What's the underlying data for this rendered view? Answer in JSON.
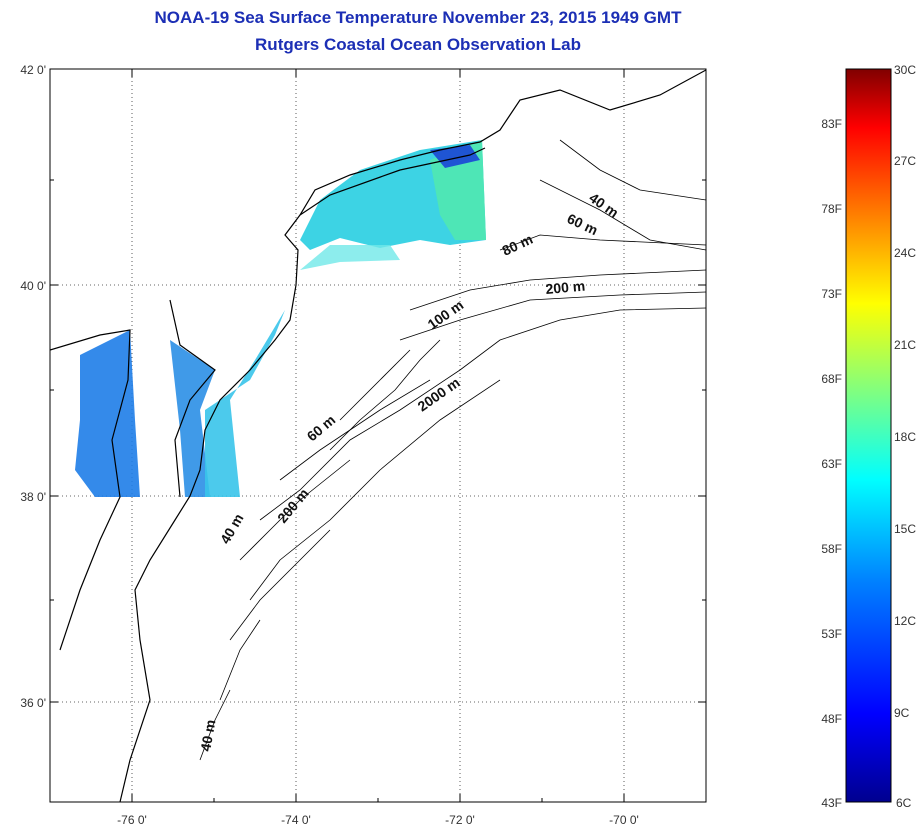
{
  "title": {
    "line1": "NOAA-19 Sea Surface Temperature November 23, 2015 1949 GMT",
    "line2": "Rutgers Coastal Ocean Observation Lab"
  },
  "map": {
    "lat_ticks": [
      "42 0'",
      "40 0'",
      "38 0'",
      "36 0'"
    ],
    "lon_ticks": [
      "-76 0'",
      "-74 0'",
      "-72 0'",
      "-70 0'"
    ],
    "depth_labels": [
      "40 m",
      "60 m",
      "80 m",
      "200 m",
      "100 m",
      "2000 m",
      "60 m",
      "200 m",
      "40 m",
      "40 m"
    ]
  },
  "colorbar": {
    "fahrenheit": [
      "83F",
      "78F",
      "73F",
      "68F",
      "63F",
      "58F",
      "53F",
      "48F",
      "43F"
    ],
    "celsius": [
      "30C",
      "27C",
      "24C",
      "21C",
      "18C",
      "15C",
      "12C",
      "9C",
      "6C"
    ],
    "colors": [
      "#00008f",
      "#0000ff",
      "#0080ff",
      "#00ffff",
      "#80ff80",
      "#ffff00",
      "#ff8000",
      "#ff0000",
      "#800000"
    ]
  }
}
